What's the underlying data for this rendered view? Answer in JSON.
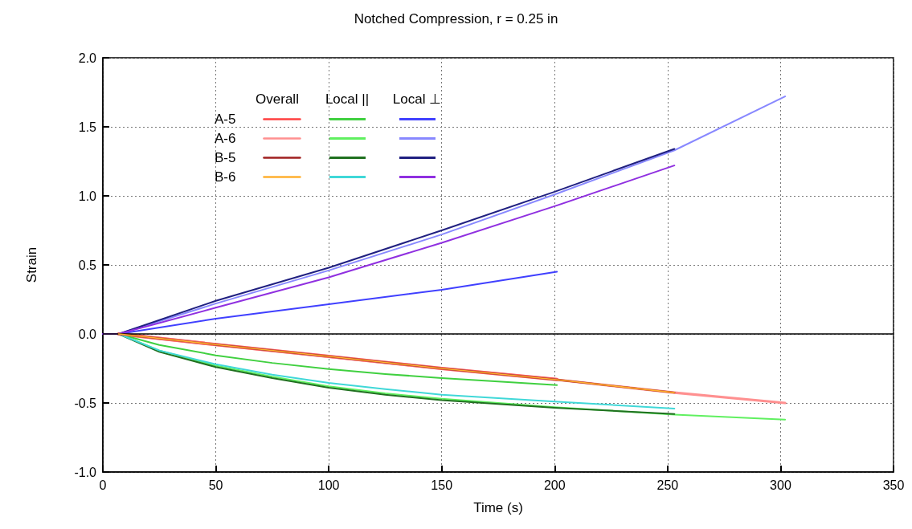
{
  "chart_data": {
    "type": "line",
    "title": "Notched Compression, r = 0.25 in",
    "xlabel": "Time (s)",
    "ylabel": "Strain",
    "annotations": [
      "Overall",
      "Local ||",
      "Local ⊥"
    ],
    "xlim": [
      0,
      350
    ],
    "xticks": [
      0,
      50,
      100,
      150,
      200,
      250,
      300,
      350
    ],
    "ylim": [
      -1,
      2
    ],
    "yticks": [
      {
        "value": -1,
        "label": "-1.0"
      },
      -0.5,
      {
        "value": 0,
        "label": "0.0"
      },
      0.5,
      {
        "value": 1,
        "label": "1.0"
      },
      1.5,
      {
        "value": 2,
        "label": "2.0"
      }
    ],
    "grid": true,
    "legend": "top left",
    "line_style": "solid",
    "marker": "none",
    "ref_lines": [
      {
        "axis": "y",
        "value": 0,
        "color": "#000000"
      }
    ],
    "series": [
      {
        "name": "A-5",
        "color": "#ff4040",
        "x": [
          7,
          50,
          100,
          150,
          201
        ],
        "values": [
          0,
          -0.077,
          -0.163,
          -0.25,
          -0.33
        ]
      },
      {
        "name": "A-6",
        "color": "#ff9090",
        "x": [
          7,
          50,
          100,
          150,
          200,
          253,
          302
        ],
        "values": [
          0,
          -0.077,
          -0.163,
          -0.25,
          -0.33,
          -0.425,
          -0.5
        ]
      },
      {
        "name": "B-5",
        "color": "#a02020",
        "x": [
          7,
          50,
          100,
          150,
          200,
          253
        ],
        "values": [
          0,
          -0.077,
          -0.163,
          -0.25,
          -0.33,
          -0.425
        ]
      },
      {
        "name": "B-6",
        "color": "#ffb030",
        "x": [
          7,
          50,
          100,
          150,
          200,
          253
        ],
        "values": [
          0,
          -0.077,
          -0.163,
          -0.25,
          -0.33,
          -0.425
        ]
      },
      {
        "color": "#40d040",
        "x": [
          0,
          7,
          25,
          50,
          75,
          100,
          125,
          150,
          175,
          201
        ],
        "values": [
          0,
          0,
          -0.08,
          -0.155,
          -0.21,
          -0.255,
          -0.29,
          -0.32,
          -0.345,
          -0.37
        ]
      },
      {
        "color": "#60f060",
        "x": [
          0,
          7,
          25,
          50,
          75,
          100,
          125,
          150,
          200,
          253,
          302
        ],
        "values": [
          0,
          0,
          -0.12,
          -0.23,
          -0.31,
          -0.38,
          -0.43,
          -0.47,
          -0.53,
          -0.585,
          -0.62
        ]
      },
      {
        "color": "#207020",
        "x": [
          0,
          7,
          25,
          50,
          75,
          100,
          125,
          150,
          200,
          253
        ],
        "values": [
          0,
          0,
          -0.13,
          -0.24,
          -0.32,
          -0.39,
          -0.44,
          -0.48,
          -0.535,
          -0.58
        ]
      },
      {
        "color": "#40d8d8",
        "x": [
          0,
          7,
          25,
          50,
          75,
          100,
          125,
          150,
          200,
          253
        ],
        "values": [
          0,
          0,
          -0.12,
          -0.22,
          -0.295,
          -0.355,
          -0.4,
          -0.44,
          -0.49,
          -0.54
        ]
      },
      {
        "color": "#4040ff",
        "x": [
          0,
          7,
          50,
          100,
          150,
          201
        ],
        "values": [
          0,
          0,
          0.11,
          0.215,
          0.32,
          0.45
        ]
      },
      {
        "color": "#8888ff",
        "x": [
          0,
          7,
          50,
          100,
          150,
          200,
          253,
          302
        ],
        "values": [
          0,
          0,
          0.22,
          0.46,
          0.72,
          1.01,
          1.33,
          1.72
        ]
      },
      {
        "color": "#202080",
        "x": [
          0,
          7,
          50,
          100,
          150,
          200,
          253
        ],
        "values": [
          0,
          0,
          0.24,
          0.48,
          0.75,
          1.03,
          1.34
        ]
      },
      {
        "color": "#9030e0",
        "x": [
          0,
          7,
          50,
          100,
          150,
          200,
          253
        ],
        "values": [
          0,
          0,
          0.19,
          0.41,
          0.66,
          0.925,
          1.22
        ]
      }
    ]
  }
}
